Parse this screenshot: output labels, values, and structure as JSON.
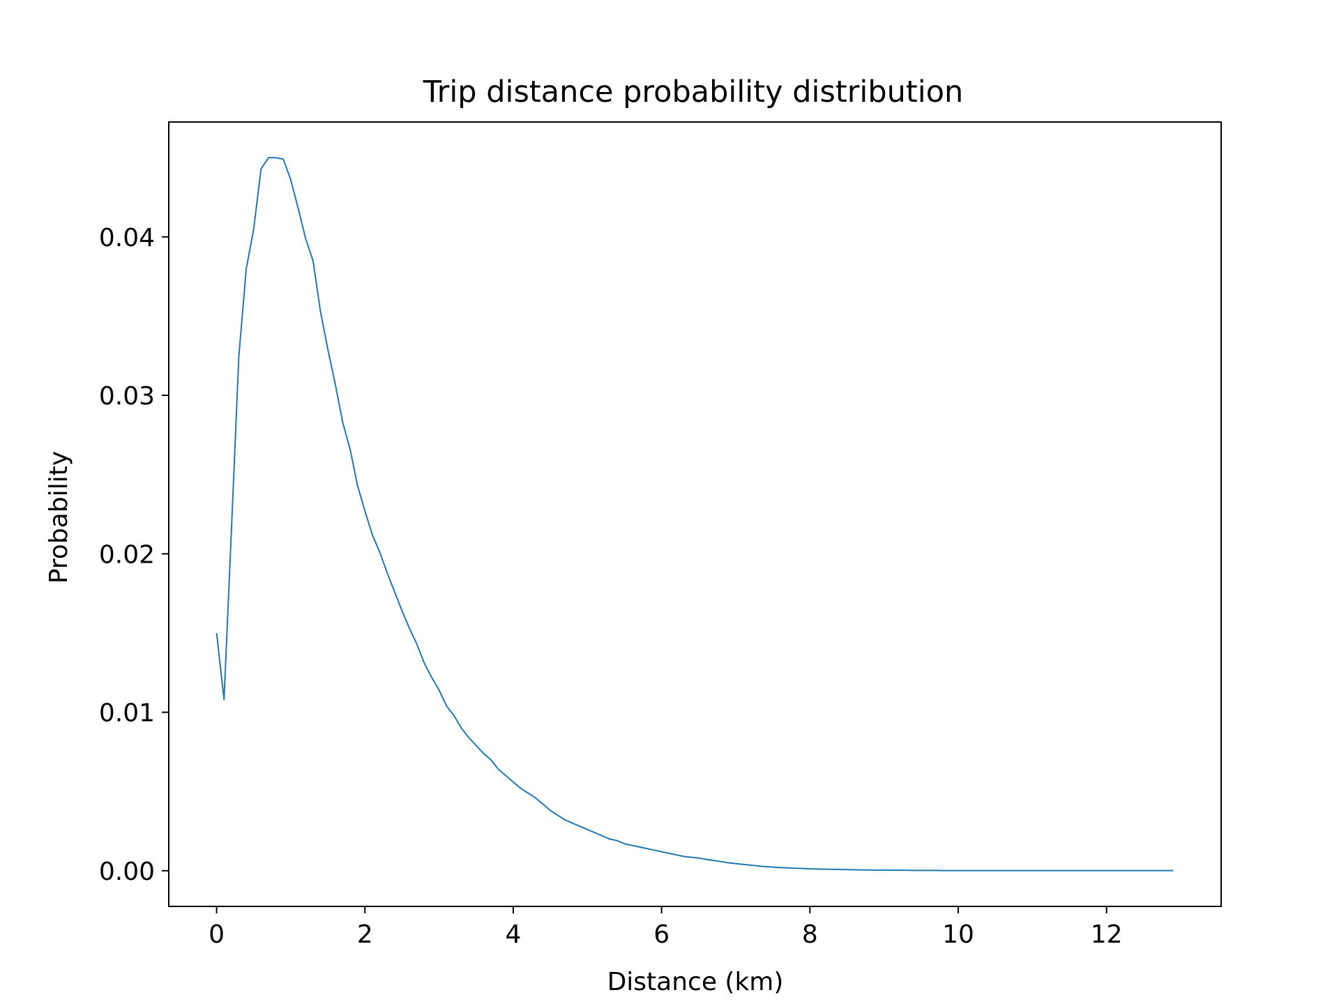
{
  "chart_data": {
    "type": "line",
    "title": "Trip distance probability distribution",
    "xlabel": "Distance (km)",
    "ylabel": "Probability",
    "xlim": [
      -0.645,
      13.545
    ],
    "ylim": [
      -0.00225,
      0.04725
    ],
    "xticks": [
      0,
      2,
      4,
      6,
      8,
      10,
      12
    ],
    "xtick_labels": [
      "0",
      "2",
      "4",
      "6",
      "8",
      "10",
      "12"
    ],
    "yticks": [
      0.0,
      0.01,
      0.02,
      0.03,
      0.04
    ],
    "ytick_labels": [
      "0.00",
      "0.01",
      "0.02",
      "0.03",
      "0.04"
    ],
    "grid": false,
    "series": [
      {
        "color": "#1f77b4",
        "x": [
          0.0,
          0.1,
          0.2,
          0.3,
          0.4,
          0.5,
          0.6,
          0.7,
          0.8,
          0.9,
          1.0,
          1.1,
          1.2,
          1.3,
          1.4,
          1.5,
          1.6,
          1.7,
          1.8,
          1.9,
          2.0,
          2.1,
          2.2,
          2.3,
          2.4,
          2.5,
          2.6,
          2.7,
          2.8,
          2.9,
          3.0,
          3.1,
          3.2,
          3.3,
          3.4,
          3.5,
          3.6,
          3.7,
          3.8,
          3.9,
          4.0,
          4.1,
          4.2,
          4.3,
          4.4,
          4.5,
          4.6,
          4.7,
          4.8,
          4.9,
          5.0,
          5.1,
          5.2,
          5.3,
          5.4,
          5.5,
          5.6,
          5.7,
          5.8,
          5.9,
          6.0,
          6.1,
          6.2,
          6.3,
          6.4,
          6.5,
          6.6,
          6.7,
          6.8,
          6.9,
          7.0,
          7.1,
          7.2,
          7.3,
          7.4,
          7.5,
          7.6,
          7.7,
          7.8,
          7.9,
          8.0,
          8.1,
          8.2,
          8.3,
          8.4,
          8.5,
          8.6,
          8.7,
          8.8,
          8.9,
          9.0,
          9.1,
          9.2,
          9.3,
          9.4,
          9.5,
          9.6,
          9.7,
          9.8,
          9.9,
          10.0,
          10.1,
          10.2,
          10.3,
          10.4,
          10.5,
          10.6,
          10.7,
          10.8,
          10.9,
          11.0,
          11.1,
          11.2,
          11.3,
          11.4,
          11.5,
          11.6,
          11.7,
          11.8,
          11.9,
          12.0,
          12.1,
          12.2,
          12.3,
          12.4,
          12.5,
          12.6,
          12.7,
          12.8,
          12.9
        ],
        "values": [
          0.015,
          0.0108,
          0.0215,
          0.0325,
          0.038,
          0.0405,
          0.0443,
          0.045,
          0.045,
          0.0449,
          0.0436,
          0.0418,
          0.0399,
          0.0385,
          0.0353,
          0.0329,
          0.0307,
          0.0283,
          0.0266,
          0.0243,
          0.0227,
          0.0212,
          0.0201,
          0.0188,
          0.0176,
          0.0164,
          0.0153,
          0.0143,
          0.0131,
          0.0122,
          0.0114,
          0.0104,
          0.0098,
          0.009,
          0.0084,
          0.0079,
          0.0074,
          0.007,
          0.0064,
          0.006,
          0.0056,
          0.0052,
          0.0049,
          0.0046,
          0.0042,
          0.0038,
          0.0035,
          0.0032,
          0.003,
          0.0028,
          0.0026,
          0.0024,
          0.0022,
          0.002,
          0.0019,
          0.0017,
          0.0016,
          0.0015,
          0.0014,
          0.0013,
          0.0012,
          0.0011,
          0.001,
          0.0009,
          0.00085,
          0.0008,
          0.00072,
          0.00065,
          0.00058,
          0.0005,
          0.00045,
          0.0004,
          0.00035,
          0.0003,
          0.00026,
          0.00023,
          0.0002,
          0.00018,
          0.00016,
          0.00014,
          0.00012,
          0.00011,
          0.0001,
          9e-05,
          8e-05,
          7e-05,
          6e-05,
          5e-05,
          5e-05,
          4e-05,
          4e-05,
          3e-05,
          3e-05,
          3e-05,
          2e-05,
          2e-05,
          2e-05,
          2e-05,
          1e-05,
          1e-05,
          1e-05,
          1e-05,
          1e-05,
          1e-05,
          1e-05,
          1e-05,
          1e-05,
          1e-05,
          1e-05,
          1e-05,
          1e-05,
          1e-05,
          1e-05,
          1e-05,
          1e-05,
          1e-05,
          1e-05,
          1e-05,
          1e-05,
          1e-05,
          1e-05,
          1e-05,
          1e-05,
          1e-05,
          1e-05,
          1e-05,
          1e-05,
          1e-05,
          1e-05,
          1e-05
        ]
      }
    ]
  }
}
